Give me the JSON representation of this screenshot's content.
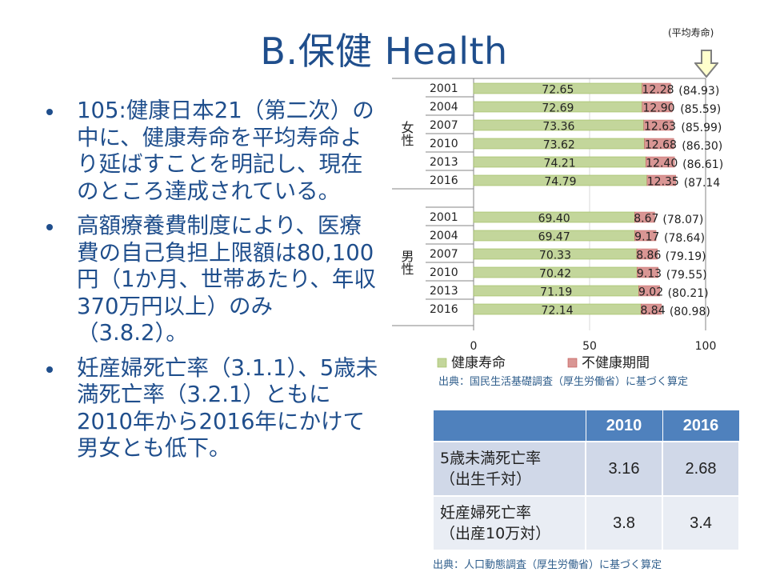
{
  "title": "B.保健 Health",
  "bullets": [
    "105:健康日本21（第二次）の中に、健康寿命を平均寿命より延ばすことを明記し、現在のところ達成されている。",
    "高額療養費制度により、医療費の自己負担上限額は80,100円（1か月、世帯あたり、年収370万円以上）のみ（3.8.2）。",
    "妊産婦死亡率（3.1.1）、5歳未満死亡率（3.2.1）ともに2010年から2016年にかけて男女とも低下。"
  ],
  "avg_label": "(平均寿命)",
  "chart_data": {
    "type": "bar",
    "orientation": "horizontal",
    "stacked": true,
    "groups": [
      {
        "name": "女性",
        "categories": [
          "2001",
          "2004",
          "2007",
          "2010",
          "2013",
          "2016"
        ],
        "healthy": [
          72.65,
          72.69,
          73.36,
          73.62,
          74.21,
          74.79
        ],
        "unhealthy": [
          12.28,
          12.9,
          12.63,
          12.68,
          12.4,
          12.35
        ],
        "totals": [
          "(84.93)",
          "(85.59)",
          "(85.99)",
          "(86.30)",
          "(86.61)",
          "(87.14"
        ]
      },
      {
        "name": "男性",
        "categories": [
          "2001",
          "2004",
          "2007",
          "2010",
          "2013",
          "2016"
        ],
        "healthy": [
          69.4,
          69.47,
          70.33,
          70.42,
          71.19,
          72.14
        ],
        "unhealthy": [
          8.67,
          9.17,
          8.86,
          9.13,
          9.02,
          8.84
        ],
        "totals": [
          "(78.07)",
          "(78.64)",
          "(79.19)",
          "(79.55)",
          "(80.21)",
          "(80.98)"
        ]
      }
    ],
    "series": [
      {
        "name": "健康寿命",
        "color": "#c3d69b"
      },
      {
        "name": "不健康期間",
        "color": "#d99694"
      }
    ],
    "xlim": [
      0,
      100
    ],
    "xticks": [
      "0",
      "50",
      "100"
    ],
    "legend": "bottom",
    "grid": true
  },
  "chart_source": "出典：国民生活基礎調査（厚生労働省）に基づく算定",
  "table": {
    "headers": [
      "",
      "2010",
      "2016"
    ],
    "rows": [
      {
        "label1": "5歳未満死亡率",
        "label2": "（出生千対）",
        "v2010": "3.16",
        "v2016": "2.68"
      },
      {
        "label1": "妊産婦死亡率",
        "label2": "（出産10万対）",
        "v2010": "3.8",
        "v2016": "3.4"
      }
    ]
  },
  "table_source": "出典：人口動態調査（厚生労働省）に基づく算定",
  "colors": {
    "title": "#1f4e8c",
    "header": "#4f81bd",
    "row1": "#d0d8e8",
    "row2": "#e9edf4"
  }
}
